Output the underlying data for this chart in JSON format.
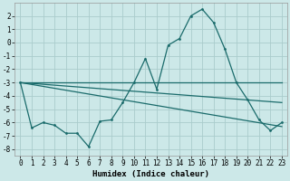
{
  "xlabel": "Humidex (Indice chaleur)",
  "bg_color": "#cce8e8",
  "grid_color": "#aacccc",
  "line_color": "#1a6b6b",
  "xlim": [
    -0.5,
    23.5
  ],
  "ylim": [
    -8.5,
    3.0
  ],
  "xticks": [
    0,
    1,
    2,
    3,
    4,
    5,
    6,
    7,
    8,
    9,
    10,
    11,
    12,
    13,
    14,
    15,
    16,
    17,
    18,
    19,
    20,
    21,
    22,
    23
  ],
  "yticks": [
    -8,
    -7,
    -6,
    -5,
    -4,
    -3,
    -2,
    -1,
    0,
    1,
    2
  ],
  "main_x": [
    0,
    1,
    2,
    3,
    4,
    5,
    6,
    7,
    8,
    9,
    10,
    11,
    12,
    13,
    14,
    15,
    16,
    17,
    18,
    19,
    20,
    21,
    22,
    23
  ],
  "main_y": [
    -3.0,
    -6.4,
    -6.0,
    -6.2,
    -6.8,
    -6.8,
    -7.8,
    -5.9,
    -5.8,
    -4.5,
    -3.0,
    -1.2,
    -3.5,
    -0.2,
    0.3,
    2.0,
    2.5,
    1.5,
    -0.5,
    -3.0,
    -4.3,
    -5.8,
    -6.6,
    -6.0
  ],
  "trend1_x": [
    0,
    23
  ],
  "trend1_y": [
    -3.0,
    -3.0
  ],
  "trend2_x": [
    0,
    23
  ],
  "trend2_y": [
    -3.0,
    -4.5
  ],
  "trend3_x": [
    0,
    23
  ],
  "trend3_y": [
    -3.0,
    -6.3
  ],
  "tick_fontsize": 5.5,
  "xlabel_fontsize": 6.5
}
